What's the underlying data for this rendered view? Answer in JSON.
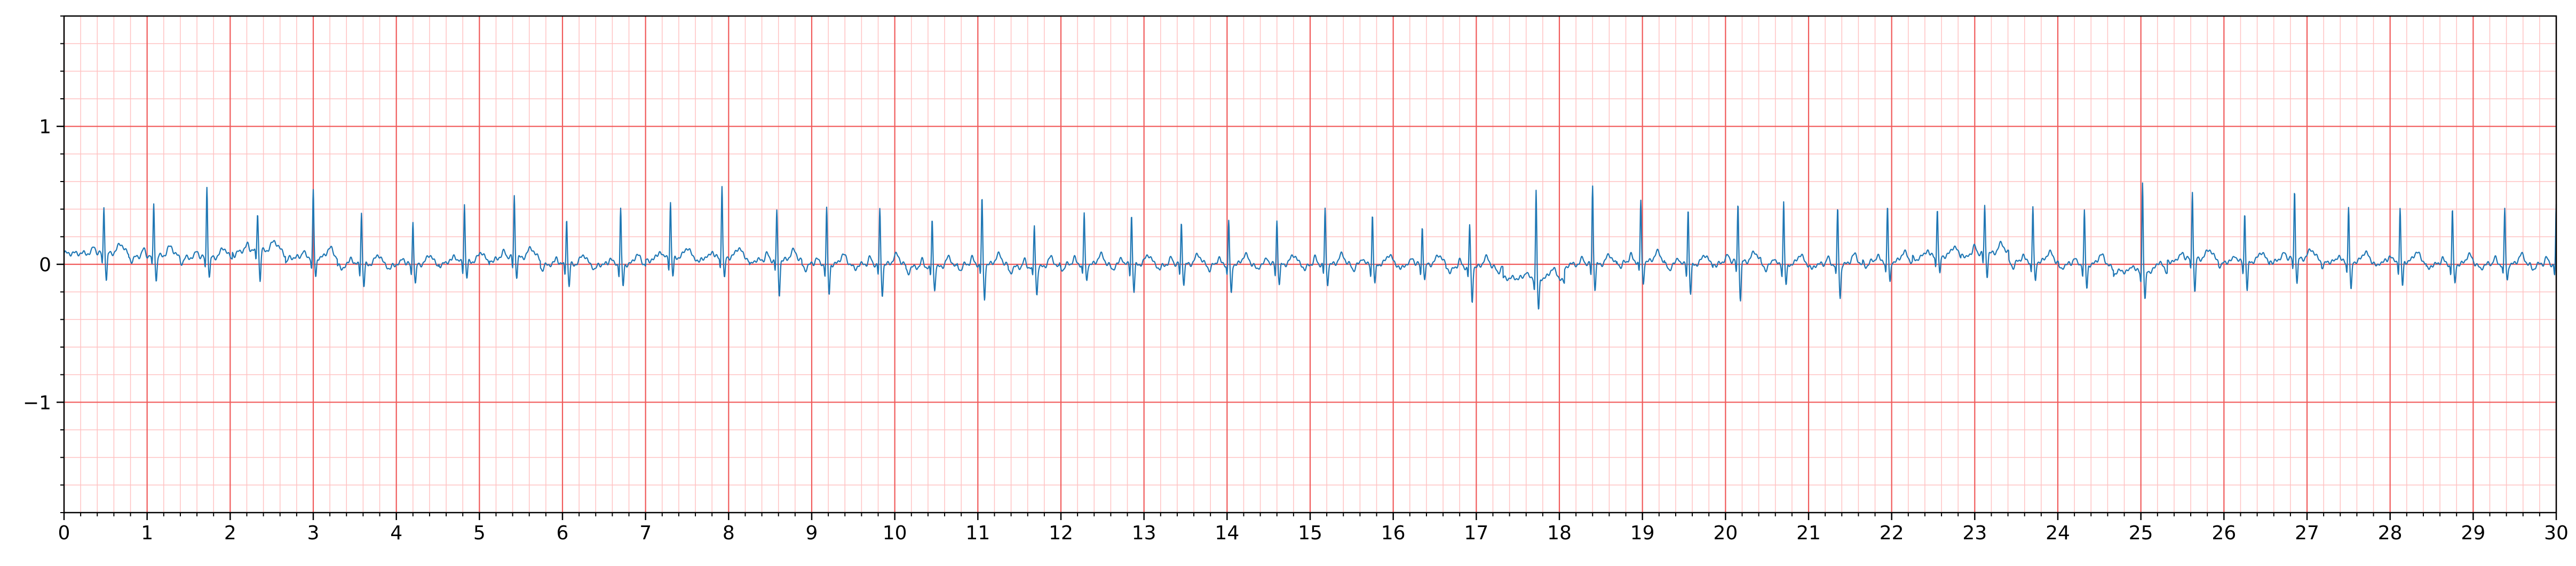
{
  "chart_data": {
    "type": "line",
    "title": "",
    "xlabel": "",
    "ylabel": "",
    "xlim": [
      0,
      30
    ],
    "ylim": [
      -1.8,
      1.8
    ],
    "x_ticks": [
      "0",
      "1",
      "2",
      "3",
      "4",
      "5",
      "6",
      "7",
      "8",
      "9",
      "10",
      "11",
      "12",
      "13",
      "14",
      "15",
      "16",
      "17",
      "18",
      "19",
      "20",
      "21",
      "22",
      "23",
      "24",
      "25",
      "26",
      "27",
      "28",
      "29",
      "30"
    ],
    "y_ticks": [
      {
        "value": 1,
        "label": "1"
      },
      {
        "value": 0,
        "label": "0"
      },
      {
        "value": -1,
        "label": "−1"
      }
    ],
    "grid": {
      "major": true,
      "minor": true,
      "major_x_step": 1,
      "minor_x_step": 0.2,
      "major_y_step": 1,
      "minor_y_step": 0.2
    },
    "series": [
      {
        "name": "",
        "r_peak_times": [
          0.48,
          1.08,
          1.72,
          2.33,
          3.0,
          3.58,
          4.2,
          4.82,
          5.42,
          6.05,
          6.7,
          7.3,
          7.92,
          8.58,
          9.18,
          9.82,
          10.45,
          11.05,
          11.68,
          12.28,
          12.85,
          13.45,
          14.02,
          14.6,
          15.18,
          15.75,
          16.35,
          16.92,
          17.72,
          18.4,
          18.98,
          19.55,
          20.15,
          20.7,
          21.35,
          21.95,
          22.55,
          23.12,
          23.7,
          24.32,
          25.02,
          25.62,
          26.25,
          26.85,
          27.5,
          28.12,
          28.75,
          29.38,
          30.0
        ],
        "r_peak_values": [
          0.34,
          0.38,
          0.52,
          0.28,
          0.48,
          0.38,
          0.32,
          0.42,
          0.45,
          0.34,
          0.4,
          0.4,
          0.53,
          0.35,
          0.4,
          0.39,
          0.35,
          0.48,
          0.3,
          0.37,
          0.36,
          0.3,
          0.32,
          0.32,
          0.4,
          0.36,
          0.28,
          0.3,
          0.63,
          0.57,
          0.44,
          0.4,
          0.42,
          0.45,
          0.4,
          0.4,
          0.35,
          0.34,
          0.4,
          0.38,
          0.65,
          0.5,
          0.35,
          0.5,
          0.4,
          0.38,
          0.4,
          0.4,
          0.42
        ],
        "s_trough_values": [
          -0.2,
          -0.18,
          -0.15,
          -0.22,
          -0.15,
          -0.16,
          -0.15,
          -0.12,
          -0.14,
          -0.16,
          -0.16,
          -0.14,
          -0.16,
          -0.25,
          -0.22,
          -0.22,
          -0.16,
          -0.25,
          -0.2,
          -0.12,
          -0.2,
          -0.14,
          -0.22,
          -0.15,
          -0.14,
          -0.15,
          -0.12,
          -0.25,
          -0.24,
          -0.18,
          -0.16,
          -0.22,
          -0.28,
          -0.16,
          -0.25,
          -0.16,
          -0.14,
          -0.16,
          -0.15,
          -0.18,
          -0.22,
          -0.25,
          -0.22,
          -0.18,
          -0.22,
          -0.18,
          -0.14,
          -0.12,
          -0.12
        ],
        "baseline_offset": [
          0.08,
          0.06,
          0.05,
          0.1,
          0.05,
          0.0,
          0.0,
          0.02,
          0.05,
          0.0,
          0.0,
          0.05,
          0.05,
          0.03,
          0.0,
          0.0,
          -0.02,
          0.0,
          -0.02,
          0.0,
          0.0,
          0.0,
          0.0,
          0.0,
          0.0,
          0.0,
          0.0,
          -0.02,
          -0.1,
          0.0,
          0.02,
          0.0,
          0.02,
          0.0,
          0.0,
          0.02,
          0.06,
          0.08,
          0.02,
          0.0,
          -0.05,
          0.04,
          0.02,
          0.04,
          0.02,
          0.02,
          0.0,
          0.0,
          0.0
        ]
      }
    ],
    "colors": {
      "trace": "#1f77b4",
      "major_grid": "#f05a5a",
      "minor_grid": "#ffc2c2",
      "axes": "#000000"
    }
  }
}
